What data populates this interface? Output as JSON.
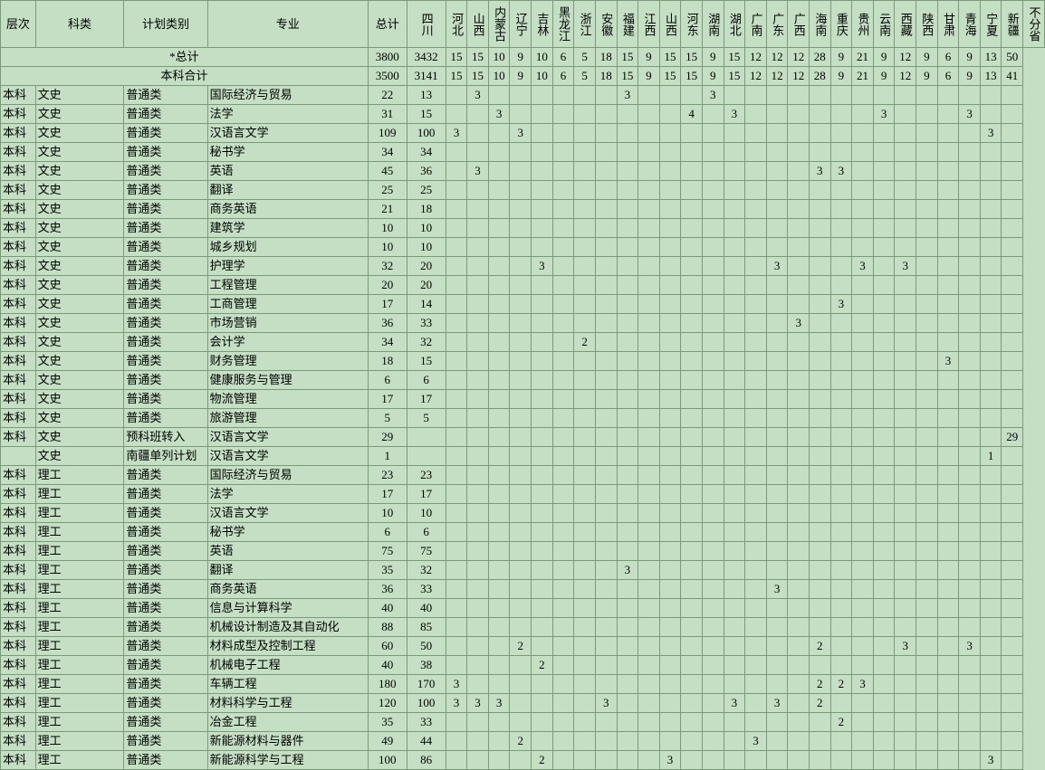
{
  "headers": {
    "level": "层次",
    "category": "科类",
    "plan_type": "计划类别",
    "major": "专业",
    "total": "总计",
    "provinces": [
      "四川",
      "河北",
      "山西",
      "内蒙古",
      "辽宁",
      "吉林",
      "黑龙江",
      "浙江",
      "安徽",
      "福建",
      "江西",
      "山西",
      "河东",
      "湖南",
      "湖北",
      "广南",
      "广东",
      "广西",
      "海南",
      "重庆",
      "贵州",
      "云南",
      "西藏",
      "陕西",
      "甘肃",
      "青海",
      "宁夏",
      "新疆",
      "不分省"
    ]
  },
  "col_widths": {
    "level": 36,
    "category": 91,
    "plan_type": 86,
    "major": 165,
    "total": 40,
    "sichuan": 40,
    "province_narrow": 22
  },
  "summary_rows": [
    {
      "label": "*总计",
      "cells": [
        "3800",
        "3432",
        "15",
        "15",
        "10",
        "9",
        "10",
        "6",
        "5",
        "18",
        "15",
        "9",
        "15",
        "15",
        "9",
        "15",
        "12",
        "12",
        "12",
        "28",
        "9",
        "21",
        "9",
        "12",
        "9",
        "6",
        "9",
        "13",
        "50"
      ]
    },
    {
      "label": "本科合计",
      "cells": [
        "3500",
        "3141",
        "15",
        "15",
        "10",
        "9",
        "10",
        "6",
        "5",
        "18",
        "15",
        "9",
        "15",
        "15",
        "9",
        "15",
        "12",
        "12",
        "12",
        "28",
        "9",
        "21",
        "9",
        "12",
        "9",
        "6",
        "9",
        "13",
        "41"
      ]
    }
  ],
  "rows": [
    {
      "c": [
        "本科",
        "文史",
        "普通类",
        "国际经济与贸易",
        "22",
        "13",
        "",
        "3",
        "",
        "",
        "",
        "",
        "",
        "",
        "3",
        "",
        "",
        "",
        "3",
        "",
        "",
        "",
        "",
        "",
        "",
        "",
        "",
        "",
        "",
        "",
        "",
        "",
        ""
      ]
    },
    {
      "c": [
        "本科",
        "文史",
        "普通类",
        "法学",
        "31",
        "15",
        "",
        "",
        "3",
        "",
        "",
        "",
        "",
        "",
        "",
        "",
        "",
        "4",
        "",
        "3",
        "",
        "",
        "",
        "",
        "",
        "",
        "3",
        "",
        "",
        "",
        "3",
        "",
        ""
      ]
    },
    {
      "c": [
        "本科",
        "文史",
        "普通类",
        "汉语言文学",
        "109",
        "100",
        "3",
        "",
        "",
        "3",
        "",
        "",
        "",
        "",
        "",
        "",
        "",
        "",
        "",
        "",
        "",
        "",
        "",
        "",
        "",
        "",
        "",
        "",
        "",
        "",
        "",
        "3",
        ""
      ]
    },
    {
      "c": [
        "本科",
        "文史",
        "普通类",
        "秘书学",
        "34",
        "34",
        "",
        "",
        "",
        "",
        "",
        "",
        "",
        "",
        "",
        "",
        "",
        "",
        "",
        "",
        "",
        "",
        "",
        "",
        "",
        "",
        "",
        "",
        "",
        "",
        "",
        "",
        ""
      ]
    },
    {
      "c": [
        "本科",
        "文史",
        "普通类",
        "英语",
        "45",
        "36",
        "",
        "3",
        "",
        "",
        "",
        "",
        "",
        "",
        "",
        "",
        "",
        "",
        "",
        "",
        "",
        "",
        "",
        "3",
        "3",
        "",
        "",
        "",
        "",
        "",
        "",
        "",
        ""
      ]
    },
    {
      "c": [
        "本科",
        "文史",
        "普通类",
        "翻译",
        "25",
        "25",
        "",
        "",
        "",
        "",
        "",
        "",
        "",
        "",
        "",
        "",
        "",
        "",
        "",
        "",
        "",
        "",
        "",
        "",
        "",
        "",
        "",
        "",
        "",
        "",
        "",
        "",
        ""
      ]
    },
    {
      "c": [
        "本科",
        "文史",
        "普通类",
        "商务英语",
        "21",
        "18",
        "",
        "",
        "",
        "",
        "",
        "",
        "",
        "",
        "",
        "",
        "",
        "",
        "",
        "",
        "",
        "",
        "",
        "",
        "",
        "",
        "",
        "",
        "",
        "",
        "",
        "",
        ""
      ]
    },
    {
      "c": [
        "本科",
        "文史",
        "普通类",
        "建筑学",
        "10",
        "10",
        "",
        "",
        "",
        "",
        "",
        "",
        "",
        "",
        "",
        "",
        "",
        "",
        "",
        "",
        "",
        "",
        "",
        "",
        "",
        "",
        "",
        "",
        "",
        "",
        "",
        "",
        ""
      ]
    },
    {
      "c": [
        "本科",
        "文史",
        "普通类",
        "城乡规划",
        "10",
        "10",
        "",
        "",
        "",
        "",
        "",
        "",
        "",
        "",
        "",
        "",
        "",
        "",
        "",
        "",
        "",
        "",
        "",
        "",
        "",
        "",
        "",
        "",
        "",
        "",
        "",
        "",
        ""
      ]
    },
    {
      "c": [
        "本科",
        "文史",
        "普通类",
        "护理学",
        "32",
        "20",
        "",
        "",
        "",
        "",
        "3",
        "",
        "",
        "",
        "",
        "",
        "",
        "",
        "",
        "",
        "",
        "3",
        "",
        "",
        "",
        "3",
        "",
        "3",
        "",
        "",
        "",
        "",
        ""
      ]
    },
    {
      "c": [
        "本科",
        "文史",
        "普通类",
        "工程管理",
        "20",
        "20",
        "",
        "",
        "",
        "",
        "",
        "",
        "",
        "",
        "",
        "",
        "",
        "",
        "",
        "",
        "",
        "",
        "",
        "",
        "",
        "",
        "",
        "",
        "",
        "",
        "",
        "",
        ""
      ]
    },
    {
      "c": [
        "本科",
        "文史",
        "普通类",
        "工商管理",
        "17",
        "14",
        "",
        "",
        "",
        "",
        "",
        "",
        "",
        "",
        "",
        "",
        "",
        "",
        "",
        "",
        "",
        "",
        "",
        "",
        "3",
        "",
        "",
        "",
        "",
        "",
        "",
        "",
        ""
      ]
    },
    {
      "c": [
        "本科",
        "文史",
        "普通类",
        "市场营销",
        "36",
        "33",
        "",
        "",
        "",
        "",
        "",
        "",
        "",
        "",
        "",
        "",
        "",
        "",
        "",
        "",
        "",
        "",
        "3",
        "",
        "",
        "",
        "",
        "",
        "",
        "",
        "",
        "",
        ""
      ]
    },
    {
      "c": [
        "本科",
        "文史",
        "普通类",
        "会计学",
        "34",
        "32",
        "",
        "",
        "",
        "",
        "",
        "",
        "2",
        "",
        "",
        "",
        "",
        "",
        "",
        "",
        "",
        "",
        "",
        "",
        "",
        "",
        "",
        "",
        "",
        "",
        "",
        "",
        ""
      ]
    },
    {
      "c": [
        "本科",
        "文史",
        "普通类",
        "财务管理",
        "18",
        "15",
        "",
        "",
        "",
        "",
        "",
        "",
        "",
        "",
        "",
        "",
        "",
        "",
        "",
        "",
        "",
        "",
        "",
        "",
        "",
        "",
        "",
        "",
        "",
        "3",
        "",
        "",
        ""
      ]
    },
    {
      "c": [
        "本科",
        "文史",
        "普通类",
        "健康服务与管理",
        "6",
        "6",
        "",
        "",
        "",
        "",
        "",
        "",
        "",
        "",
        "",
        "",
        "",
        "",
        "",
        "",
        "",
        "",
        "",
        "",
        "",
        "",
        "",
        "",
        "",
        "",
        "",
        "",
        ""
      ]
    },
    {
      "c": [
        "本科",
        "文史",
        "普通类",
        "物流管理",
        "17",
        "17",
        "",
        "",
        "",
        "",
        "",
        "",
        "",
        "",
        "",
        "",
        "",
        "",
        "",
        "",
        "",
        "",
        "",
        "",
        "",
        "",
        "",
        "",
        "",
        "",
        "",
        "",
        ""
      ]
    },
    {
      "c": [
        "本科",
        "文史",
        "普通类",
        "旅游管理",
        "5",
        "5",
        "",
        "",
        "",
        "",
        "",
        "",
        "",
        "",
        "",
        "",
        "",
        "",
        "",
        "",
        "",
        "",
        "",
        "",
        "",
        "",
        "",
        "",
        "",
        "",
        "",
        "",
        ""
      ]
    },
    {
      "c": [
        "本科",
        "文史",
        "预科班转入",
        "汉语言文学",
        "29",
        "",
        "",
        "",
        "",
        "",
        "",
        "",
        "",
        "",
        "",
        "",
        "",
        "",
        "",
        "",
        "",
        "",
        "",
        "",
        "",
        "",
        "",
        "",
        "",
        "",
        "",
        "",
        "29"
      ]
    },
    {
      "c": [
        "",
        "文史",
        "南疆单列计划",
        "汉语言文学",
        "1",
        "",
        "",
        "",
        "",
        "",
        "",
        "",
        "",
        "",
        "",
        "",
        "",
        "",
        "",
        "",
        "",
        "",
        "",
        "",
        "",
        "",
        "",
        "",
        "",
        "",
        "",
        "1",
        ""
      ]
    },
    {
      "c": [
        "本科",
        "理工",
        "普通类",
        "国际经济与贸易",
        "23",
        "23",
        "",
        "",
        "",
        "",
        "",
        "",
        "",
        "",
        "",
        "",
        "",
        "",
        "",
        "",
        "",
        "",
        "",
        "",
        "",
        "",
        "",
        "",
        "",
        "",
        "",
        "",
        ""
      ]
    },
    {
      "c": [
        "本科",
        "理工",
        "普通类",
        "法学",
        "17",
        "17",
        "",
        "",
        "",
        "",
        "",
        "",
        "",
        "",
        "",
        "",
        "",
        "",
        "",
        "",
        "",
        "",
        "",
        "",
        "",
        "",
        "",
        "",
        "",
        "",
        "",
        "",
        ""
      ]
    },
    {
      "c": [
        "本科",
        "理工",
        "普通类",
        "汉语言文学",
        "10",
        "10",
        "",
        "",
        "",
        "",
        "",
        "",
        "",
        "",
        "",
        "",
        "",
        "",
        "",
        "",
        "",
        "",
        "",
        "",
        "",
        "",
        "",
        "",
        "",
        "",
        "",
        "",
        ""
      ]
    },
    {
      "c": [
        "本科",
        "理工",
        "普通类",
        "秘书学",
        "6",
        "6",
        "",
        "",
        "",
        "",
        "",
        "",
        "",
        "",
        "",
        "",
        "",
        "",
        "",
        "",
        "",
        "",
        "",
        "",
        "",
        "",
        "",
        "",
        "",
        "",
        "",
        "",
        ""
      ]
    },
    {
      "c": [
        "本科",
        "理工",
        "普通类",
        "英语",
        "75",
        "75",
        "",
        "",
        "",
        "",
        "",
        "",
        "",
        "",
        "",
        "",
        "",
        "",
        "",
        "",
        "",
        "",
        "",
        "",
        "",
        "",
        "",
        "",
        "",
        "",
        "",
        "",
        ""
      ]
    },
    {
      "c": [
        "本科",
        "理工",
        "普通类",
        "翻译",
        "35",
        "32",
        "",
        "",
        "",
        "",
        "",
        "",
        "",
        "",
        "3",
        "",
        "",
        "",
        "",
        "",
        "",
        "",
        "",
        "",
        "",
        "",
        "",
        "",
        "",
        "",
        "",
        "",
        ""
      ]
    },
    {
      "c": [
        "本科",
        "理工",
        "普通类",
        "商务英语",
        "36",
        "33",
        "",
        "",
        "",
        "",
        "",
        "",
        "",
        "",
        "",
        "",
        "",
        "",
        "",
        "",
        "",
        "3",
        "",
        "",
        "",
        "",
        "",
        "",
        "",
        "",
        "",
        "",
        ""
      ]
    },
    {
      "c": [
        "本科",
        "理工",
        "普通类",
        "信息与计算科学",
        "40",
        "40",
        "",
        "",
        "",
        "",
        "",
        "",
        "",
        "",
        "",
        "",
        "",
        "",
        "",
        "",
        "",
        "",
        "",
        "",
        "",
        "",
        "",
        "",
        "",
        "",
        "",
        "",
        ""
      ]
    },
    {
      "c": [
        "本科",
        "理工",
        "普通类",
        "机械设计制造及其自动化",
        "88",
        "85",
        "",
        "",
        "",
        "",
        "",
        "",
        "",
        "",
        "",
        "",
        "",
        "",
        "",
        "",
        "",
        "",
        "",
        "",
        "",
        "",
        "",
        "",
        "",
        "",
        "",
        "",
        ""
      ]
    },
    {
      "c": [
        "本科",
        "理工",
        "普通类",
        "材料成型及控制工程",
        "60",
        "50",
        "",
        "",
        "",
        "2",
        "",
        "",
        "",
        "",
        "",
        "",
        "",
        "",
        "",
        "",
        "",
        "",
        "",
        "2",
        "",
        "",
        "",
        "3",
        "",
        "",
        "3",
        "",
        ""
      ]
    },
    {
      "c": [
        "本科",
        "理工",
        "普通类",
        "机械电子工程",
        "40",
        "38",
        "",
        "",
        "",
        "",
        "2",
        "",
        "",
        "",
        "",
        "",
        "",
        "",
        "",
        "",
        "",
        "",
        "",
        "",
        "",
        "",
        "",
        "",
        "",
        "",
        "",
        "",
        ""
      ]
    },
    {
      "c": [
        "本科",
        "理工",
        "普通类",
        "车辆工程",
        "180",
        "170",
        "3",
        "",
        "",
        "",
        "",
        "",
        "",
        "",
        "",
        "",
        "",
        "",
        "",
        "",
        "",
        "",
        "",
        "2",
        "2",
        "3",
        "",
        "",
        "",
        "",
        "",
        "",
        ""
      ]
    },
    {
      "c": [
        "本科",
        "理工",
        "普通类",
        "材料科学与工程",
        "120",
        "100",
        "3",
        "3",
        "3",
        "",
        "",
        "",
        "",
        "3",
        "",
        "",
        "",
        "",
        "",
        "3",
        "",
        "3",
        "",
        "2",
        "",
        "",
        "",
        "",
        "",
        "",
        "",
        "",
        ""
      ]
    },
    {
      "c": [
        "本科",
        "理工",
        "普通类",
        "冶金工程",
        "35",
        "33",
        "",
        "",
        "",
        "",
        "",
        "",
        "",
        "",
        "",
        "",
        "",
        "",
        "",
        "",
        "",
        "",
        "",
        "",
        "2",
        "",
        "",
        "",
        "",
        "",
        "",
        "",
        ""
      ]
    },
    {
      "c": [
        "本科",
        "理工",
        "普通类",
        "新能源材料与器件",
        "49",
        "44",
        "",
        "",
        "",
        "2",
        "",
        "",
        "",
        "",
        "",
        "",
        "",
        "",
        "",
        "",
        "3",
        "",
        "",
        "",
        "",
        "",
        "",
        "",
        "",
        "",
        "",
        "",
        ""
      ]
    },
    {
      "c": [
        "本科",
        "理工",
        "普通类",
        "新能源科学与工程",
        "100",
        "86",
        "",
        "",
        "",
        "",
        "2",
        "",
        "",
        "",
        "",
        "",
        "3",
        "",
        "",
        "",
        "",
        "",
        "",
        "",
        "",
        "",
        "",
        "",
        "",
        "",
        "",
        "3",
        ""
      ]
    }
  ]
}
